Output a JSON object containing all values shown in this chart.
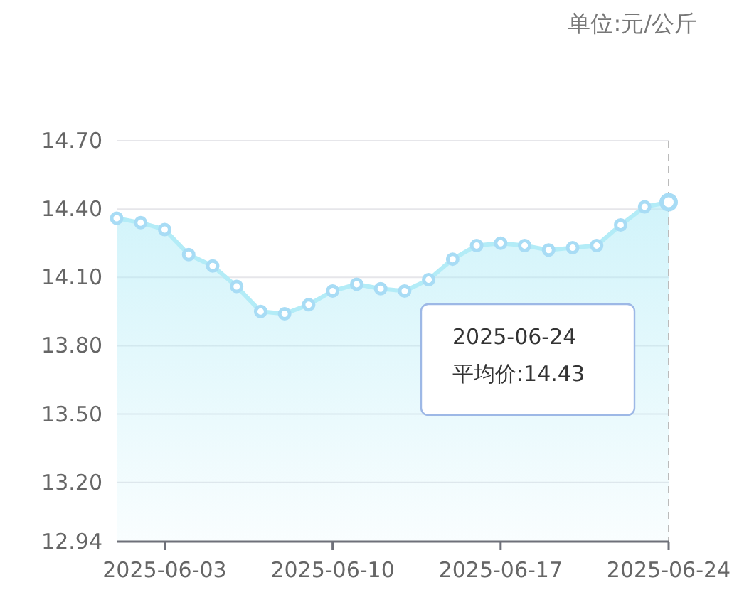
{
  "chart_data": {
    "type": "area",
    "title": "单位:元/公斤",
    "x": [
      "2025-06-01",
      "2025-06-02",
      "2025-06-03",
      "2025-06-04",
      "2025-06-05",
      "2025-06-06",
      "2025-06-07",
      "2025-06-08",
      "2025-06-09",
      "2025-06-10",
      "2025-06-11",
      "2025-06-12",
      "2025-06-13",
      "2025-06-14",
      "2025-06-15",
      "2025-06-16",
      "2025-06-17",
      "2025-06-18",
      "2025-06-19",
      "2025-06-20",
      "2025-06-21",
      "2025-06-22",
      "2025-06-23",
      "2025-06-24"
    ],
    "values": [
      14.36,
      14.34,
      14.31,
      14.2,
      14.15,
      14.06,
      13.95,
      13.94,
      13.98,
      14.04,
      14.07,
      14.05,
      14.04,
      14.09,
      14.18,
      14.24,
      14.25,
      14.24,
      14.22,
      14.23,
      14.24,
      14.33,
      14.41,
      14.43
    ],
    "color": "#b3ecf7",
    "marker": "circle",
    "grid": "y",
    "xlim": [
      "2025-06-01",
      "2025-06-24"
    ],
    "xticks": [
      "2025-06-03",
      "2025-06-10",
      "2025-06-17",
      "2025-06-24"
    ],
    "ylim": [
      12.94,
      14.7
    ],
    "yticks": [
      12.94,
      {
        "value": 13.2,
        "label": "13.20"
      },
      {
        "value": 13.5,
        "label": "13.50"
      },
      {
        "value": 13.8,
        "label": "13.80"
      },
      {
        "value": 14.1,
        "label": "14.10"
      },
      {
        "value": 14.4,
        "label": "14.40"
      },
      {
        "value": 14.7,
        "label": "14.70"
      }
    ],
    "ref_lines": [
      {
        "axis": "x",
        "value": "2025-06-24",
        "color": "#bbbbbb",
        "line_style": "dashed"
      }
    ],
    "annotations": [
      "2025-06-24",
      "平均价:14.43"
    ]
  }
}
